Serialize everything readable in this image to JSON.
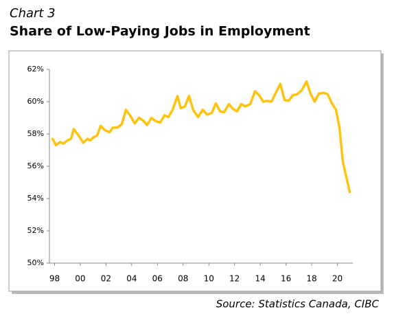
{
  "chart_data": {
    "type": "line",
    "subtitle": "Chart 3",
    "title": "Share of Low-Paying Jobs in Employment",
    "source": "Source: Statistics Canada, CIBC",
    "x": [
      1997.84,
      1998.11,
      1998.43,
      1998.69,
      1999.01,
      1999.28,
      1999.49,
      1999.87,
      2000.24,
      2000.56,
      2000.78,
      2001.04,
      2001.31,
      2001.58,
      2001.9,
      2002.27,
      2002.54,
      2002.91,
      2003.23,
      2003.55,
      2003.87,
      2004.24,
      2004.56,
      2004.94,
      2005.2,
      2005.53,
      2005.85,
      2006.22,
      2006.54,
      2006.86,
      2007.18,
      2007.56,
      2007.82,
      2008.14,
      2008.46,
      2008.78,
      2009.16,
      2009.53,
      2009.85,
      2010.23,
      2010.55,
      2010.87,
      2011.19,
      2011.56,
      2011.88,
      2012.2,
      2012.52,
      2012.84,
      2013.22,
      2013.59,
      2013.91,
      2014.23,
      2014.55,
      2014.87,
      2015.24,
      2015.56,
      2015.89,
      2016.21,
      2016.53,
      2016.85,
      2017.22,
      2017.6,
      2017.91,
      2018.23,
      2018.56,
      2018.93,
      2019.25,
      2019.57,
      2019.89,
      2020.16,
      2020.42,
      2020.96
    ],
    "series": [
      {
        "color": "#ffc20e",
        "values": [
          57.7,
          57.3,
          57.5,
          57.4,
          57.6,
          57.7,
          58.3,
          57.9,
          57.45,
          57.7,
          57.6,
          57.8,
          57.9,
          58.5,
          58.25,
          58.1,
          58.4,
          58.4,
          58.6,
          59.5,
          59.15,
          58.65,
          59.0,
          58.8,
          58.55,
          59.0,
          58.8,
          58.7,
          59.15,
          59.05,
          59.5,
          60.35,
          59.6,
          59.7,
          60.35,
          59.5,
          59.05,
          59.5,
          59.2,
          59.3,
          59.9,
          59.4,
          59.35,
          59.85,
          59.55,
          59.4,
          59.85,
          59.7,
          59.85,
          60.65,
          60.4,
          60.0,
          60.05,
          60.0,
          60.6,
          61.1,
          60.1,
          60.05,
          60.4,
          60.45,
          60.7,
          61.25,
          60.5,
          60.0,
          60.5,
          60.55,
          60.45,
          59.9,
          59.5,
          58.4,
          56.3,
          54.4
        ]
      }
    ],
    "xlim": [
      1997.6,
      2021.2
    ],
    "xticks": [
      {
        "value": 1998,
        "label": "98"
      },
      {
        "value": 2000,
        "label": "00"
      },
      {
        "value": 2002,
        "label": "02"
      },
      {
        "value": 2004,
        "label": "04"
      },
      {
        "value": 2006,
        "label": "06"
      },
      {
        "value": 2008,
        "label": "08"
      },
      {
        "value": 2010,
        "label": "10"
      },
      {
        "value": 2012,
        "label": "12"
      },
      {
        "value": 2014,
        "label": "14"
      },
      {
        "value": 2016,
        "label": "16"
      },
      {
        "value": 2018,
        "label": "18"
      },
      {
        "value": 2020,
        "label": "20"
      }
    ],
    "ylim": [
      50,
      62
    ],
    "yticks": [
      {
        "value": 50,
        "label": "50%"
      },
      {
        "value": 52,
        "label": "52%"
      },
      {
        "value": 54,
        "label": "54%"
      },
      {
        "value": 56,
        "label": "56%"
      },
      {
        "value": 58,
        "label": "58%"
      },
      {
        "value": 60,
        "label": "60%"
      },
      {
        "value": 62,
        "label": "62%"
      }
    ],
    "grid": false
  }
}
